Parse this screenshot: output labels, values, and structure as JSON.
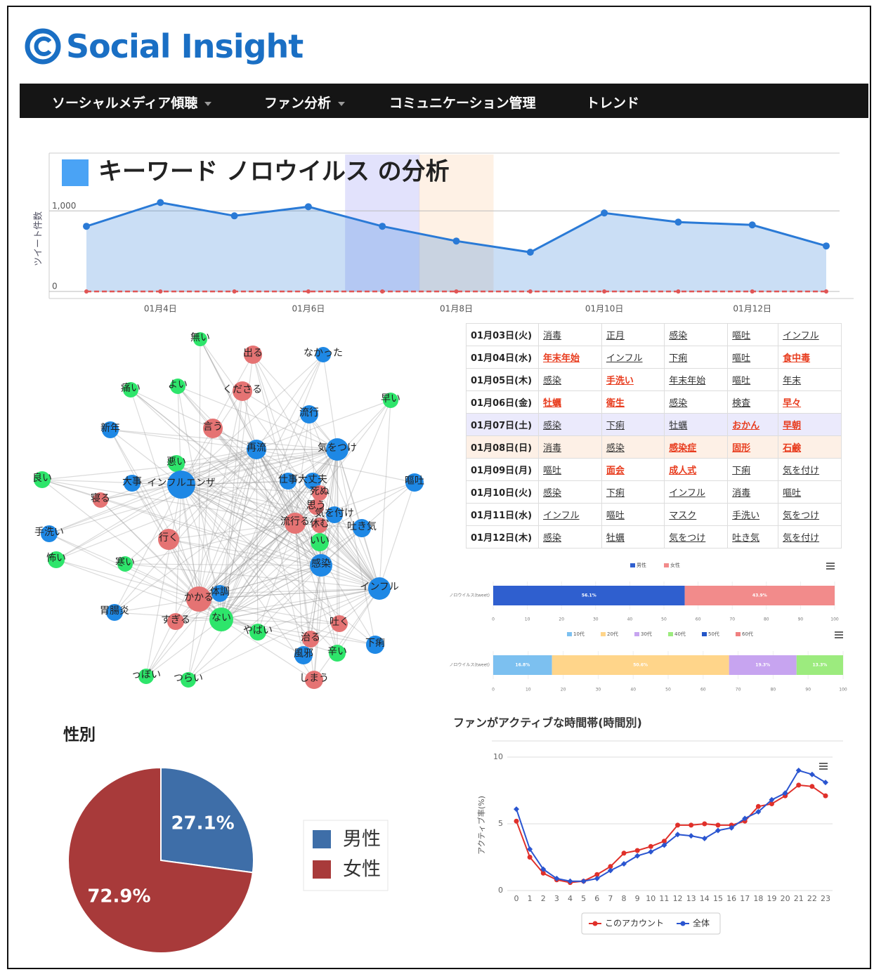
{
  "header": {
    "logo": "Social Insight"
  },
  "nav": [
    "ソーシャルメディア傾聴",
    "ファン分析",
    "コミュニケーション管理",
    "トレンド"
  ],
  "chart_data": [
    {
      "type": "area",
      "title": "キーワード ノロウイルス の分析",
      "y_label": "ツイート件数",
      "categories": [
        null,
        "01月4日",
        null,
        "01月6日",
        null,
        "01月8日",
        null,
        "01月10日",
        null,
        "01月12日",
        null
      ],
      "series": [
        {
          "color": "#2a7ad6",
          "values": [
            809,
            1104,
            939,
            1052,
            809,
            626,
            487,
            974,
            861,
            826,
            565
          ]
        },
        {
          "color": "#e05555",
          "dashed": true,
          "values": [
            0,
            0,
            0,
            0,
            0,
            0,
            0,
            0,
            0,
            0,
            0
          ]
        }
      ],
      "ylim": [
        0,
        1700
      ],
      "yticks": [
        0,
        {
          "value": 1000,
          "label": "1,000"
        }
      ],
      "grid": true
    },
    {
      "type": "stacked_bar",
      "categories": [
        "ノロウイルス(tweet)"
      ],
      "series": [
        {
          "name": "男性",
          "color": "#2f5fcf",
          "values": [
            56.1
          ],
          "value_labels": [
            "56.1%"
          ]
        },
        {
          "name": "女性",
          "color": "#f28b8b",
          "values": [
            43.9
          ],
          "value_labels": [
            "43.9%"
          ]
        }
      ],
      "xlim": [
        0,
        100
      ],
      "xticks": [
        0,
        10,
        20,
        30,
        40,
        50,
        60,
        70,
        80,
        90,
        100
      ]
    },
    {
      "type": "stacked_bar",
      "categories": [
        "ノロウイルス(tweet)"
      ],
      "series": [
        {
          "name": "10代",
          "color": "#7cc0f0",
          "values": [
            16.8
          ],
          "value_labels": [
            "16.8%"
          ]
        },
        {
          "name": "20代",
          "color": "#ffd58a",
          "values": [
            50.6
          ],
          "value_labels": [
            "50.6%"
          ]
        },
        {
          "name": "30代",
          "color": "#c7a4f0",
          "values": [
            19.3
          ],
          "value_labels": [
            "19.3%"
          ]
        },
        {
          "name": "40代",
          "color": "#9ceb7e",
          "values": [
            13.3
          ],
          "value_labels": [
            "13.3%"
          ]
        },
        {
          "name": "50代",
          "color": "#2456c8",
          "values": [
            0
          ]
        },
        {
          "name": "60代",
          "color": "#f08080",
          "values": [
            0
          ]
        }
      ],
      "xlim": [
        0,
        100
      ],
      "xticks": [
        0,
        10,
        20,
        30,
        40,
        50,
        60,
        70,
        80,
        90,
        100
      ]
    },
    {
      "type": "pie",
      "title": "性別",
      "categories": [
        "男性",
        "女性"
      ],
      "values": [
        27.1,
        72.9
      ],
      "value_labels": [
        "27.1%",
        "72.9%"
      ],
      "colors": [
        "#3e6ea8",
        "#a83a3a"
      ]
    },
    {
      "type": "line",
      "title": "ファンがアクティブな時間帯(時間別)",
      "y_label": "アクティブ率(%)",
      "x": [
        0,
        1,
        2,
        3,
        4,
        5,
        6,
        7,
        8,
        9,
        10,
        11,
        12,
        13,
        14,
        15,
        16,
        17,
        18,
        19,
        20,
        21,
        22,
        23
      ],
      "series": [
        {
          "name": "このアカウント",
          "color": "#e0302a",
          "values": [
            5.2,
            2.5,
            1.3,
            0.8,
            0.6,
            0.7,
            1.2,
            1.8,
            2.8,
            3.0,
            3.3,
            3.7,
            4.9,
            4.9,
            5.0,
            4.9,
            4.9,
            5.2,
            6.3,
            6.5,
            7.1,
            7.9,
            7.8,
            7.1
          ]
        },
        {
          "name": "全体",
          "color": "#2a55d0",
          "values": [
            6.1,
            3.1,
            1.6,
            0.9,
            0.7,
            0.7,
            0.9,
            1.5,
            2.0,
            2.6,
            2.9,
            3.4,
            4.2,
            4.1,
            3.9,
            4.5,
            4.7,
            5.4,
            5.9,
            6.8,
            7.3,
            9.0,
            8.7,
            8.1
          ]
        }
      ],
      "xlim": [
        0,
        23
      ],
      "xticks": [
        0,
        1,
        2,
        3,
        4,
        5,
        6,
        7,
        8,
        9,
        10,
        11,
        12,
        13,
        14,
        15,
        16,
        17,
        18,
        19,
        20,
        21,
        22,
        23
      ],
      "ylim": [
        0,
        10
      ],
      "yticks": [
        0,
        5,
        10
      ],
      "grid": true
    }
  ],
  "network": {
    "nodes": [
      {
        "label": "無い",
        "color": "#2ee56b"
      },
      {
        "label": "出る",
        "color": "#e57373"
      },
      {
        "label": "なかった",
        "color": "#1e88e5"
      },
      {
        "label": "痛い",
        "color": "#2ee56b"
      },
      {
        "label": "よい",
        "color": "#2ee56b"
      },
      {
        "label": "くださる",
        "color": "#e57373"
      },
      {
        "label": "早い",
        "color": "#2ee56b"
      },
      {
        "label": "流行",
        "color": "#1e88e5"
      },
      {
        "label": "新年",
        "color": "#1e88e5"
      },
      {
        "label": "言う",
        "color": "#e57373"
      },
      {
        "label": "再流",
        "color": "#1e88e5"
      },
      {
        "label": "気をつけ",
        "color": "#1e88e5"
      },
      {
        "label": "悪い",
        "color": "#2ee56b"
      },
      {
        "label": "良い",
        "color": "#2ee56b"
      },
      {
        "label": "大事",
        "color": "#1e88e5"
      },
      {
        "label": "インフルエンザ",
        "color": "#1e88e5"
      },
      {
        "label": "仕事",
        "color": "#1e88e5"
      },
      {
        "label": "大丈夫",
        "color": "#1e88e5"
      },
      {
        "label": "嘔吐",
        "color": "#1e88e5"
      },
      {
        "label": "死ぬ",
        "color": "#e57373"
      },
      {
        "label": "寝る",
        "color": "#e57373"
      },
      {
        "label": "思う",
        "color": "#e57373"
      },
      {
        "label": "気を付け",
        "color": "#1e88e5"
      },
      {
        "label": "流行る",
        "color": "#e57373"
      },
      {
        "label": "休む",
        "color": "#e57373"
      },
      {
        "label": "吐き気",
        "color": "#1e88e5"
      },
      {
        "label": "手洗い",
        "color": "#1e88e5"
      },
      {
        "label": "行く",
        "color": "#e57373"
      },
      {
        "label": "いい",
        "color": "#2ee56b"
      },
      {
        "label": "怖い",
        "color": "#2ee56b"
      },
      {
        "label": "寒い",
        "color": "#2ee56b"
      },
      {
        "label": "感染",
        "color": "#1e88e5"
      },
      {
        "label": "インフル",
        "color": "#1e88e5"
      },
      {
        "label": "かかる",
        "color": "#e57373"
      },
      {
        "label": "体調",
        "color": "#1e88e5"
      },
      {
        "label": "胃腸炎",
        "color": "#1e88e5"
      },
      {
        "label": "ない",
        "color": "#2ee56b"
      },
      {
        "label": "すぎる",
        "color": "#e57373"
      },
      {
        "label": "吐く",
        "color": "#e57373"
      },
      {
        "label": "やばい",
        "color": "#2ee56b"
      },
      {
        "label": "治る",
        "color": "#e57373"
      },
      {
        "label": "下痢",
        "color": "#1e88e5"
      },
      {
        "label": "風邪",
        "color": "#1e88e5"
      },
      {
        "label": "辛い",
        "color": "#2ee56b"
      },
      {
        "label": "っぽい",
        "color": "#2ee56b"
      },
      {
        "label": "つらい",
        "color": "#2ee56b"
      },
      {
        "label": "しまう",
        "color": "#e57373"
      }
    ]
  },
  "table": {
    "rows": [
      {
        "date": "01月03日(火)",
        "keywords": [
          "消毒",
          "正月",
          "感染",
          "嘔吐",
          "インフル"
        ],
        "red": []
      },
      {
        "date": "01月04日(水)",
        "keywords": [
          "年末年始",
          "インフル",
          "下痢",
          "嘔吐",
          "食中毒"
        ],
        "red": [
          0,
          4
        ]
      },
      {
        "date": "01月05日(木)",
        "keywords": [
          "感染",
          "手洗い",
          "年末年始",
          "嘔吐",
          "年末"
        ],
        "red": [
          1
        ]
      },
      {
        "date": "01月06日(金)",
        "keywords": [
          "牡蠣",
          "衛生",
          "感染",
          "検査",
          "早々"
        ],
        "red": [
          0,
          1,
          4
        ]
      },
      {
        "date": "01月07日(土)",
        "keywords": [
          "感染",
          "下痢",
          "牡蠣",
          "おかん",
          "早朝"
        ],
        "red": [
          3,
          4
        ]
      },
      {
        "date": "01月08日(日)",
        "keywords": [
          "消毒",
          "感染",
          "感染症",
          "固形",
          "石鹸"
        ],
        "red": [
          2,
          3,
          4
        ]
      },
      {
        "date": "01月09日(月)",
        "keywords": [
          "嘔吐",
          "面会",
          "成人式",
          "下痢",
          "気を付け"
        ],
        "red": [
          1,
          2
        ]
      },
      {
        "date": "01月10日(火)",
        "keywords": [
          "感染",
          "下痢",
          "インフル",
          "消毒",
          "嘔吐"
        ],
        "red": []
      },
      {
        "date": "01月11日(水)",
        "keywords": [
          "インフル",
          "嘔吐",
          "マスク",
          "手洗い",
          "気をつけ"
        ],
        "red": []
      },
      {
        "date": "01月12日(木)",
        "keywords": [
          "感染",
          "牡蠣",
          "気をつけ",
          "吐き気",
          "気を付け"
        ],
        "red": []
      }
    ]
  }
}
